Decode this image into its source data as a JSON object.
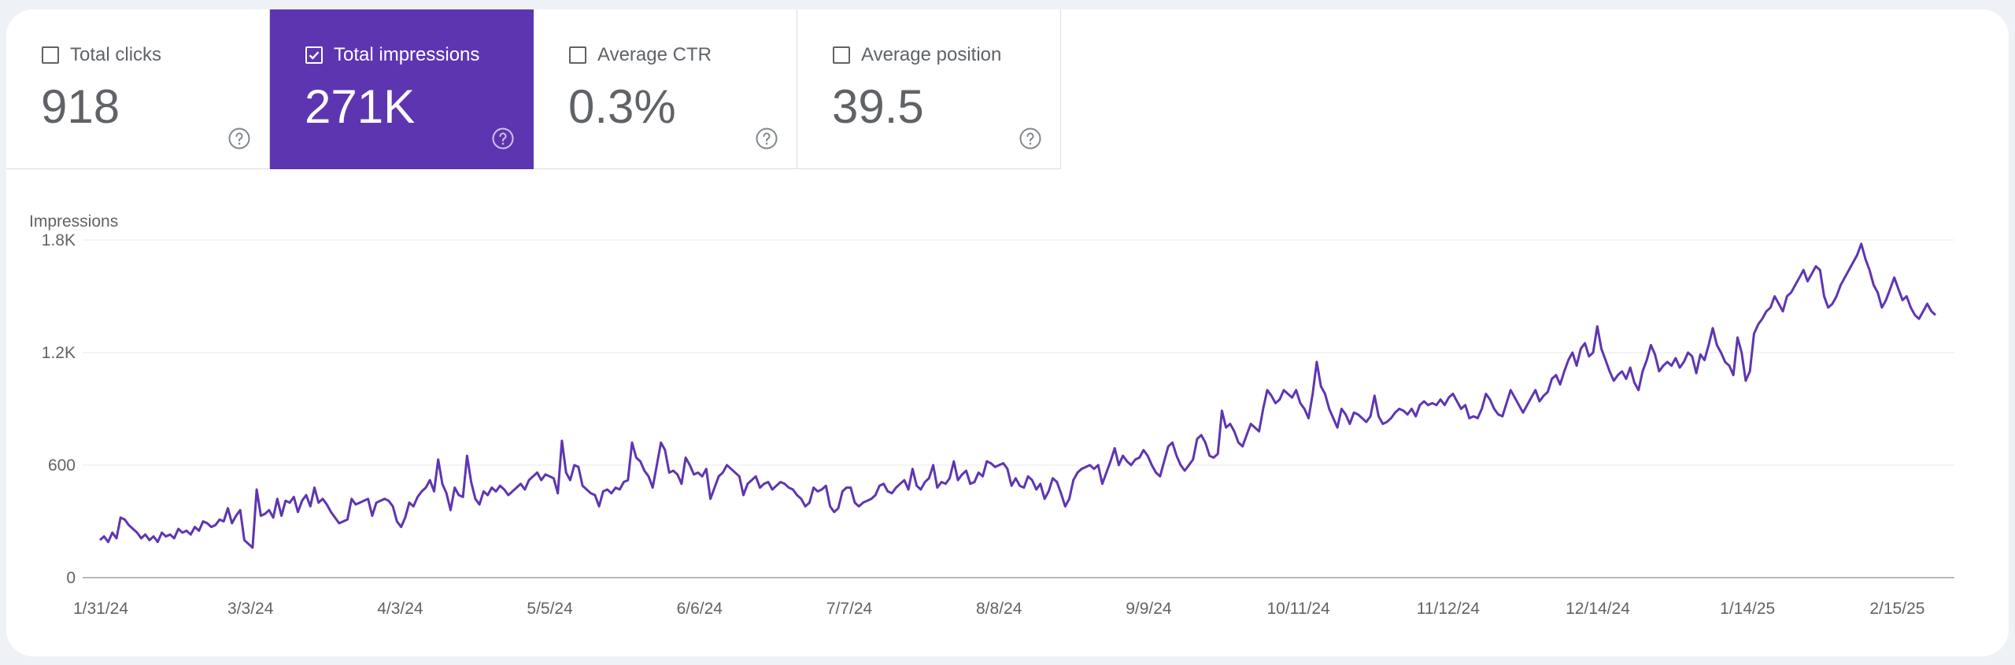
{
  "metrics": [
    {
      "label": "Total clicks",
      "value": "918",
      "checked": false,
      "icon": "help-icon"
    },
    {
      "label": "Total impressions",
      "value": "271K",
      "checked": true,
      "icon": "help-icon"
    },
    {
      "label": "Average CTR",
      "value": "0.3%",
      "checked": false,
      "icon": "help-icon"
    },
    {
      "label": "Average position",
      "value": "39.5",
      "checked": false,
      "icon": "help-icon"
    }
  ],
  "colors": {
    "accent": "#5e35b1",
    "line": "#5e35b1",
    "grid": "#e8eaed",
    "text": "#5f6368"
  },
  "chart_data": {
    "type": "line",
    "ylabel": "Impressions",
    "ylim": [
      0,
      1800
    ],
    "yticks": [
      {
        "v": 0,
        "label": "0"
      },
      {
        "v": 600,
        "label": "600"
      },
      {
        "v": 1200,
        "label": "1.2K"
      },
      {
        "v": 1800,
        "label": "1.8K"
      }
    ],
    "xticks": [
      "1/31/24",
      "3/3/24",
      "4/3/24",
      "5/5/24",
      "6/6/24",
      "7/7/24",
      "8/8/24",
      "9/9/24",
      "10/11/24",
      "11/12/24",
      "12/14/24",
      "1/14/25",
      "2/15/25"
    ],
    "grid": true,
    "series": [
      {
        "values": [
          200,
          220,
          190,
          240,
          210,
          320,
          310,
          280,
          260,
          240,
          210,
          230,
          200,
          220,
          190,
          240,
          220,
          230,
          210,
          260,
          240,
          250,
          230,
          270,
          250,
          300,
          290,
          270,
          280,
          310,
          300,
          370,
          290,
          330,
          360,
          200,
          180,
          160,
          470,
          330,
          340,
          360,
          320,
          420,
          330,
          410,
          400,
          430,
          350,
          410,
          440,
          380,
          480,
          400,
          420,
          390,
          350,
          320,
          290,
          300,
          310,
          420,
          390,
          400,
          410,
          420,
          330,
          400,
          410,
          420,
          410,
          380,
          300,
          270,
          320,
          400,
          380,
          430,
          460,
          480,
          520,
          460,
          630,
          500,
          450,
          360,
          480,
          440,
          430,
          650,
          510,
          420,
          390,
          460,
          440,
          480,
          460,
          490,
          470,
          440,
          460,
          480,
          500,
          470,
          520,
          540,
          560,
          520,
          550,
          540,
          530,
          450,
          730,
          560,
          520,
          600,
          590,
          490,
          470,
          450,
          440,
          380,
          460,
          470,
          450,
          480,
          470,
          510,
          520,
          720,
          640,
          620,
          570,
          540,
          480,
          600,
          720,
          680,
          560,
          570,
          550,
          500,
          640,
          600,
          550,
          560,
          540,
          580,
          420,
          480,
          540,
          560,
          600,
          580,
          560,
          540,
          440,
          500,
          520,
          540,
          480,
          500,
          510,
          470,
          490,
          510,
          500,
          480,
          470,
          440,
          420,
          380,
          400,
          480,
          460,
          470,
          490,
          380,
          350,
          370,
          460,
          480,
          480,
          400,
          380,
          400,
          410,
          420,
          440,
          490,
          500,
          460,
          450,
          480,
          500,
          520,
          470,
          580,
          490,
          470,
          510,
          530,
          600,
          480,
          510,
          500,
          530,
          620,
          520,
          550,
          570,
          500,
          510,
          560,
          540,
          620,
          610,
          590,
          600,
          610,
          580,
          490,
          530,
          490,
          480,
          540,
          520,
          470,
          500,
          420,
          460,
          530,
          510,
          450,
          380,
          420,
          520,
          560,
          580,
          590,
          600,
          580,
          600,
          500,
          560,
          620,
          690,
          600,
          650,
          620,
          600,
          630,
          640,
          680,
          650,
          600,
          560,
          540,
          620,
          700,
          720,
          650,
          600,
          570,
          600,
          630,
          740,
          760,
          720,
          650,
          640,
          660,
          890,
          800,
          820,
          780,
          720,
          700,
          760,
          820,
          800,
          780,
          900,
          1000,
          970,
          930,
          950,
          1000,
          980,
          960,
          1000,
          930,
          900,
          850,
          980,
          1150,
          1020,
          980,
          900,
          850,
          800,
          900,
          870,
          820,
          880,
          870,
          850,
          830,
          860,
          970,
          860,
          820,
          830,
          850,
          880,
          900,
          890,
          870,
          900,
          860,
          920,
          940,
          920,
          930,
          920,
          950,
          920,
          960,
          980,
          940,
          900,
          920,
          850,
          860,
          850,
          900,
          980,
          950,
          900,
          870,
          860,
          930,
          1000,
          960,
          920,
          880,
          920,
          960,
          1000,
          940,
          970,
          990,
          1060,
          1080,
          1030,
          1100,
          1160,
          1200,
          1130,
          1220,
          1250,
          1180,
          1200,
          1340,
          1220,
          1160,
          1100,
          1050,
          1080,
          1100,
          1060,
          1120,
          1040,
          1000,
          1100,
          1160,
          1240,
          1190,
          1100,
          1130,
          1150,
          1130,
          1170,
          1120,
          1150,
          1200,
          1180,
          1090,
          1190,
          1160,
          1240,
          1330,
          1240,
          1200,
          1150,
          1130,
          1080,
          1280,
          1200,
          1050,
          1100,
          1300,
          1350,
          1380,
          1420,
          1440,
          1500,
          1460,
          1420,
          1500,
          1520,
          1560,
          1600,
          1640,
          1580,
          1620,
          1660,
          1640,
          1500,
          1440,
          1460,
          1500,
          1560,
          1600,
          1640,
          1680,
          1720,
          1780,
          1700,
          1640,
          1560,
          1520,
          1440,
          1480,
          1540,
          1600,
          1540,
          1480,
          1500,
          1440,
          1400,
          1380,
          1420,
          1460,
          1420,
          1400
        ]
      }
    ]
  }
}
